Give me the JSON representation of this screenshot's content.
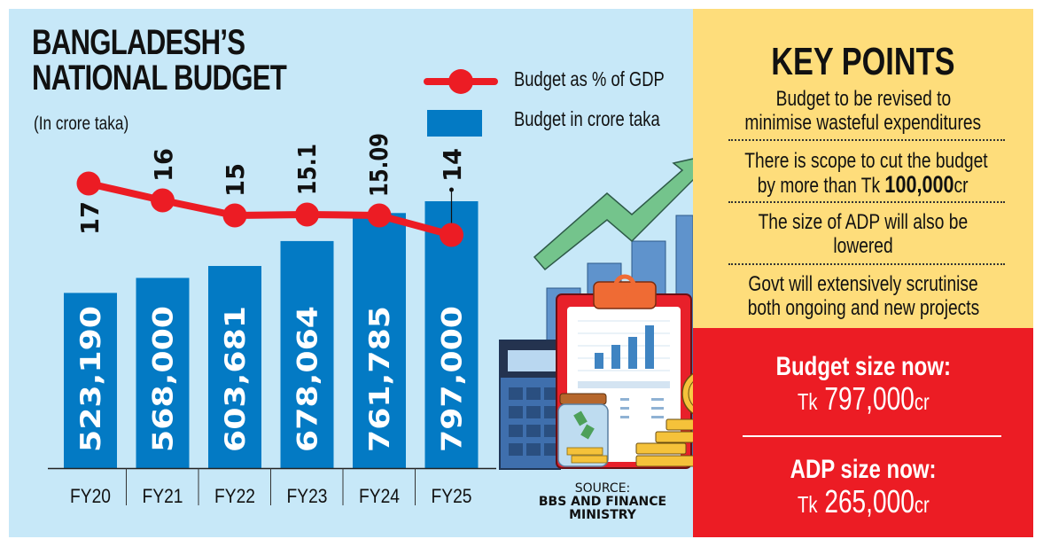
{
  "header": {
    "title_line1": "BANGLADESH’S",
    "title_line2": "NATIONAL BUDGET",
    "subtitle": "(In crore taka)"
  },
  "legend": {
    "line_label": "Budget as % of GDP",
    "bar_label": "Budget in crore taka"
  },
  "colors": {
    "background": "#c7e8f8",
    "bar": "#037ac4",
    "line": "#ec1c24",
    "key_points_bg": "#fedd7b",
    "summary_bg": "#ec1c24",
    "arrow": "#74c48c"
  },
  "chart_data": {
    "type": "bar+line",
    "title": "BANGLADESH’S NATIONAL BUDGET",
    "subtitle": "(In crore taka)",
    "categories": [
      "FY20",
      "FY21",
      "FY22",
      "FY23",
      "FY24",
      "FY25"
    ],
    "series": [
      {
        "name": "Budget in crore taka",
        "type": "bar",
        "values": [
          523190,
          568000,
          603681,
          678064,
          761785,
          797000
        ],
        "labels": [
          "523,190",
          "568,000",
          "603,681",
          "678,064",
          "761,785",
          "797,000"
        ]
      },
      {
        "name": "Budget as % of GDP",
        "type": "line",
        "values": [
          17,
          16,
          15,
          15.1,
          15.09,
          14
        ],
        "labels": [
          "17",
          "16",
          "15",
          "15.1",
          "15.09",
          "14"
        ]
      }
    ],
    "legend_position": "top-right",
    "grid": false
  },
  "source": {
    "label": "SOURCE:",
    "line1": "BBS AND FINANCE",
    "line2": "MINISTRY"
  },
  "key_points": {
    "title": "KEY POINTS",
    "items": [
      {
        "line1": "Budget to be revised to",
        "line2": "minimise wasteful expenditures"
      },
      {
        "line1": "There is scope to cut the budget",
        "line2_prefix": "by more than Tk ",
        "line2_bold": "100,000",
        "line2_suffix": "cr"
      },
      {
        "line1": "The size of ADP will also be",
        "line2": "lowered"
      },
      {
        "line1": "Govt will extensively scrutinise",
        "line2": "both ongoing and new projects"
      }
    ]
  },
  "summary": {
    "budget_label": "Budget size now:",
    "budget_prefix": "Tk",
    "budget_value": "797,000",
    "budget_suffix": "cr",
    "adp_label": "ADP size now:",
    "adp_prefix": "Tk",
    "adp_value": "265,000",
    "adp_suffix": "cr"
  }
}
